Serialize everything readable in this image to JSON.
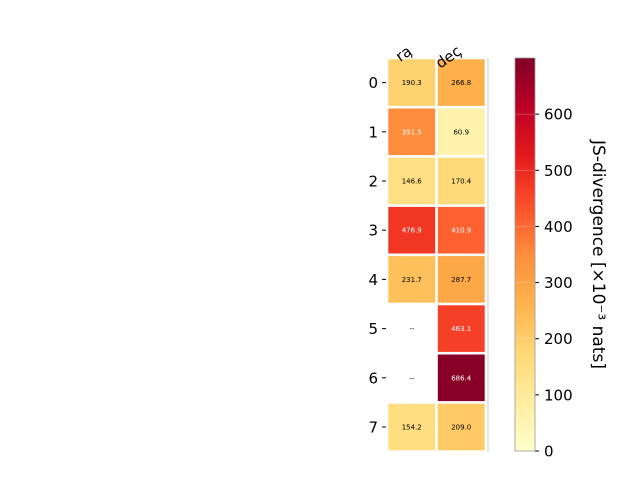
{
  "chart_data": {
    "type": "heatmap",
    "columns": [
      "ra",
      "dec"
    ],
    "rows": [
      "0",
      "1",
      "2",
      "3",
      "4",
      "5",
      "6",
      "7"
    ],
    "values": [
      [
        190.3,
        266.8
      ],
      [
        351.5,
        60.9
      ],
      [
        146.6,
        170.4
      ],
      [
        476.9,
        410.9
      ],
      [
        231.7,
        287.7
      ],
      [
        null,
        463.1
      ],
      [
        null,
        686.4
      ],
      [
        154.2,
        209.0
      ]
    ],
    "missing_label": "--",
    "colorbar": {
      "label": "JS-divergence [×10⁻³ nats]",
      "min": 0,
      "max": 700,
      "ticks": [
        0,
        100,
        200,
        300,
        400,
        500,
        600
      ],
      "colormap": "YlOrRd"
    }
  }
}
